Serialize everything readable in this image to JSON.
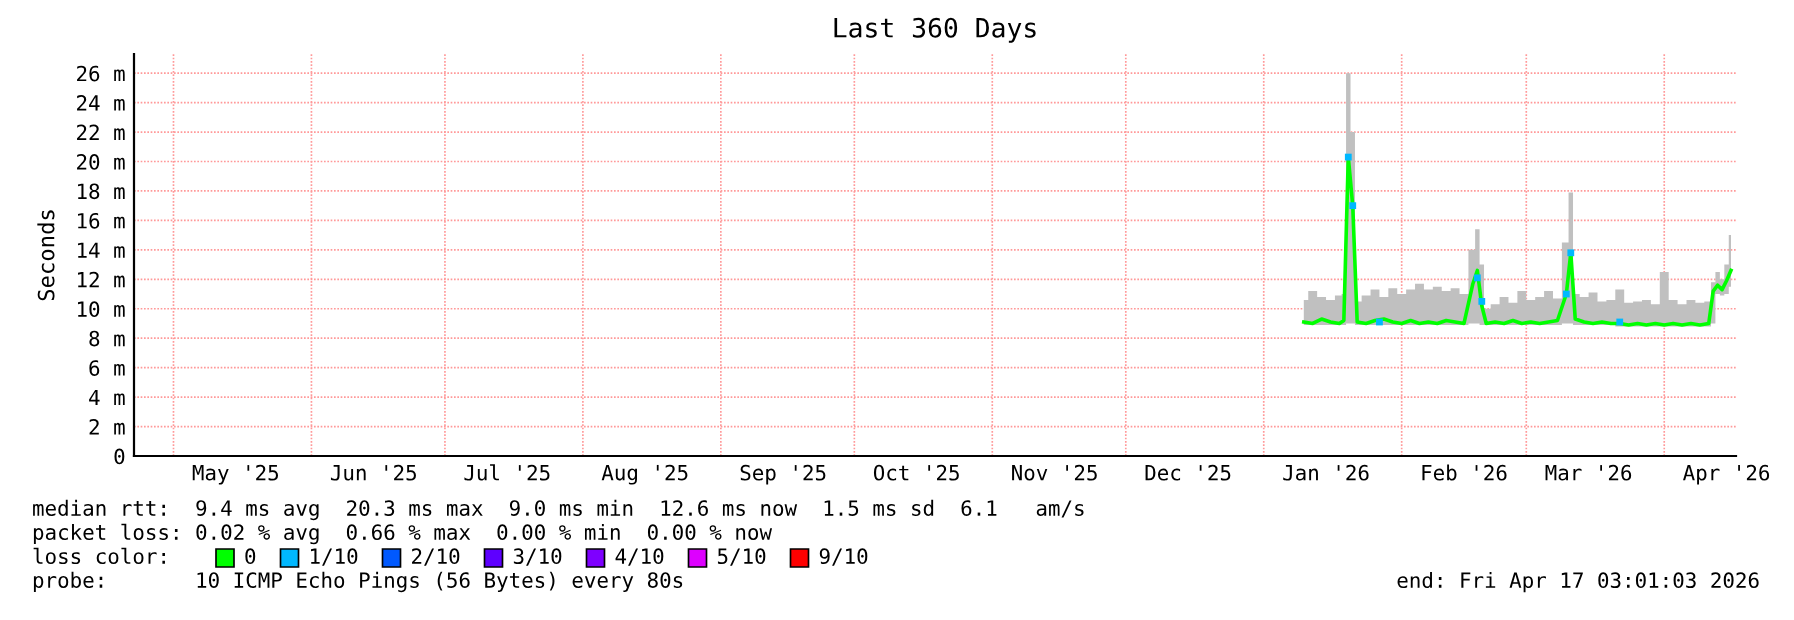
{
  "chart_data": {
    "type": "line",
    "title": "Last 360 Days",
    "ylabel": "Seconds",
    "legend_title": "loss color:",
    "legend": "bottom",
    "grid": true,
    "xlim": [
      "2025-04-22T03:01",
      "2026-04-17T03:01"
    ],
    "ylim": [
      0,
      27.3
    ],
    "yticks": [
      {
        "value": 0,
        "label": "0"
      },
      {
        "value": 2,
        "label": "2 m"
      },
      {
        "value": 4,
        "label": "4 m"
      },
      {
        "value": 6,
        "label": "6 m"
      },
      {
        "value": 8,
        "label": "8 m"
      },
      {
        "value": 10,
        "label": "10 m"
      },
      {
        "value": 12,
        "label": "12 m"
      },
      {
        "value": 14,
        "label": "14 m"
      },
      {
        "value": 16,
        "label": "16 m"
      },
      {
        "value": 18,
        "label": "18 m"
      },
      {
        "value": 20,
        "label": "20 m"
      },
      {
        "value": 22,
        "label": "22 m"
      },
      {
        "value": 24,
        "label": "24 m"
      },
      {
        "value": 26,
        "label": "26 m"
      }
    ],
    "xticks": [
      {
        "value": "2025-05-01",
        "label": null
      },
      {
        "value": "2025-05-15",
        "label": "May '25"
      },
      {
        "value": "2025-06-01",
        "label": null
      },
      {
        "value": "2025-06-15",
        "label": "Jun '25"
      },
      {
        "value": "2025-07-01",
        "label": null
      },
      {
        "value": "2025-07-15",
        "label": "Jul '25"
      },
      {
        "value": "2025-08-01",
        "label": null
      },
      {
        "value": "2025-08-15",
        "label": "Aug '25"
      },
      {
        "value": "2025-09-01",
        "label": null
      },
      {
        "value": "2025-09-15",
        "label": "Sep '25"
      },
      {
        "value": "2025-10-01",
        "label": null
      },
      {
        "value": "2025-10-15",
        "label": "Oct '25"
      },
      {
        "value": "2025-11-01",
        "label": null
      },
      {
        "value": "2025-11-15",
        "label": "Nov '25"
      },
      {
        "value": "2025-12-01",
        "label": null
      },
      {
        "value": "2025-12-15",
        "label": "Dec '25"
      },
      {
        "value": "2026-01-01",
        "label": null
      },
      {
        "value": "2026-01-15",
        "label": "Jan '26"
      },
      {
        "value": "2026-02-01",
        "label": null
      },
      {
        "value": "2026-02-15",
        "label": "Feb '26"
      },
      {
        "value": "2026-03-01",
        "label": null
      },
      {
        "value": "2026-03-15",
        "label": "Mar '26"
      },
      {
        "value": "2026-04-01",
        "label": null
      },
      {
        "value": "2026-04-15",
        "label": "Apr '26"
      }
    ],
    "series": [
      {
        "name": "0",
        "color": "#00ff00",
        "x": [
          "2026-01-10",
          "2026-01-12",
          "2026-01-14",
          "2026-01-16",
          "2026-01-18",
          "2026-01-19",
          "2026-01-20",
          "2026-01-21",
          "2026-01-22",
          "2026-01-24",
          "2026-01-26",
          "2026-01-28",
          "2026-01-30",
          "2026-02-01",
          "2026-02-03",
          "2026-02-05",
          "2026-02-07",
          "2026-02-09",
          "2026-02-11",
          "2026-02-13",
          "2026-02-15",
          "2026-02-17",
          "2026-02-18",
          "2026-02-19",
          "2026-02-20",
          "2026-02-22",
          "2026-02-24",
          "2026-02-26",
          "2026-02-28",
          "2026-03-02",
          "2026-03-04",
          "2026-03-06",
          "2026-03-08",
          "2026-03-10",
          "2026-03-11",
          "2026-03-12",
          "2026-03-14",
          "2026-03-16",
          "2026-03-18",
          "2026-03-20",
          "2026-03-22",
          "2026-03-24",
          "2026-03-26",
          "2026-03-28",
          "2026-03-30",
          "2026-04-01",
          "2026-04-03",
          "2026-04-05",
          "2026-04-07",
          "2026-04-09",
          "2026-04-11",
          "2026-04-12",
          "2026-04-13",
          "2026-04-14",
          "2026-04-15",
          "2026-04-16"
        ],
        "values": [
          9.1,
          9.0,
          9.3,
          9.1,
          9.0,
          9.2,
          20.3,
          17.0,
          9.1,
          9.0,
          9.2,
          9.3,
          9.1,
          9.0,
          9.2,
          9.0,
          9.1,
          9.0,
          9.2,
          9.1,
          9.0,
          11.7,
          12.6,
          10.2,
          9.0,
          9.1,
          9.0,
          9.2,
          9.0,
          9.1,
          9.0,
          9.1,
          9.2,
          11.0,
          13.8,
          9.3,
          9.1,
          9.0,
          9.1,
          9.0,
          9.0,
          8.9,
          9.0,
          8.9,
          9.0,
          8.9,
          9.0,
          8.9,
          9.0,
          8.9,
          9.0,
          11.2,
          11.6,
          11.3,
          11.9,
          12.6
        ],
        "lower": [
          8.9,
          8.9,
          8.9,
          8.9,
          8.9,
          8.9,
          9.0,
          9.0,
          8.9,
          8.9,
          8.9,
          8.9,
          8.9,
          8.9,
          8.9,
          8.9,
          8.9,
          8.9,
          8.9,
          8.9,
          8.9,
          9.0,
          9.0,
          8.9,
          8.9,
          8.9,
          8.9,
          8.9,
          8.9,
          8.9,
          8.9,
          8.9,
          8.9,
          9.0,
          9.0,
          8.9,
          8.9,
          8.9,
          8.9,
          8.9,
          8.8,
          8.8,
          8.8,
          8.8,
          8.8,
          8.8,
          8.8,
          8.8,
          8.8,
          8.8,
          8.8,
          9.0,
          11.0,
          10.9,
          11.0,
          11.5
        ],
        "upper": [
          10.6,
          11.2,
          10.8,
          10.6,
          10.9,
          11.0,
          26.0,
          22.0,
          10.5,
          10.9,
          11.3,
          10.8,
          11.4,
          11.0,
          11.3,
          11.7,
          11.3,
          11.5,
          11.2,
          11.4,
          11.0,
          14.0,
          15.4,
          13.0,
          10.0,
          10.3,
          10.8,
          10.4,
          11.2,
          10.6,
          10.8,
          11.2,
          10.7,
          14.5,
          17.9,
          11.0,
          10.8,
          11.1,
          10.5,
          10.6,
          11.3,
          10.4,
          10.5,
          10.6,
          10.3,
          12.5,
          10.6,
          10.3,
          10.6,
          10.4,
          10.5,
          11.8,
          12.5,
          12.0,
          13.0,
          15.0
        ]
      },
      {
        "name": "1/10",
        "type": "scatter",
        "color": "#00b8ff",
        "x": [
          "2026-01-20",
          "2026-01-21",
          "2026-01-27",
          "2026-02-18",
          "2026-02-19",
          "2026-03-10",
          "2026-03-11",
          "2026-03-22"
        ],
        "values": [
          20.3,
          17.0,
          9.1,
          12.1,
          10.5,
          11.0,
          13.8,
          9.1
        ]
      },
      {
        "name": "2/10",
        "type": "scatter",
        "color": "#0059ff"
      },
      {
        "name": "3/10",
        "type": "scatter",
        "color": "#5e00ff"
      },
      {
        "name": "4/10",
        "type": "scatter",
        "color": "#7e00ff"
      },
      {
        "name": "5/10",
        "type": "scatter",
        "color": "#dd00ff"
      },
      {
        "name": "9/10",
        "type": "scatter",
        "color": "#ff0000"
      }
    ],
    "annotations": [
      "median rtt:  9.4 ms avg  20.3 ms max  9.0 ms min  12.6 ms now  1.5 ms sd  6.1   am/s",
      "packet loss: 0.02 % avg  0.66 % max  0.00 % min  0.00 % now",
      "probe:       10 ICMP Echo Pings (56 Bytes) every 80s",
      "end: Fri Apr 17 03:01:03 2026"
    ]
  }
}
